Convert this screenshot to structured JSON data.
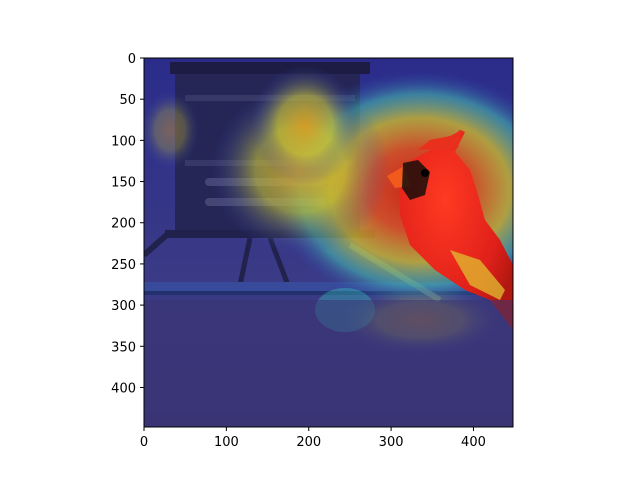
{
  "chart_data": {
    "type": "heatmap",
    "title": "",
    "xlabel": "",
    "ylabel": "",
    "image_size": [
      448,
      448
    ],
    "xlim": [
      0,
      448
    ],
    "ylim": [
      448,
      0
    ],
    "x_ticks": [
      0,
      100,
      200,
      300,
      400
    ],
    "y_ticks": [
      0,
      50,
      100,
      150,
      200,
      250,
      300,
      350,
      400
    ],
    "colormap": "jet",
    "overlay": "saliency heatmap over photo of a red cardinal perched on a bird feeder",
    "hotspots": [
      {
        "x": 320,
        "y": 175,
        "rx": 140,
        "ry": 105,
        "intensity": 1.0
      },
      {
        "x": 250,
        "y": 150,
        "rx": 60,
        "ry": 50,
        "intensity": 0.7
      },
      {
        "x": 195,
        "y": 140,
        "rx": 35,
        "ry": 55,
        "intensity": 0.55
      },
      {
        "x": 340,
        "y": 310,
        "rx": 80,
        "ry": 35,
        "intensity": 0.4
      },
      {
        "x": 30,
        "y": 90,
        "rx": 30,
        "ry": 25,
        "intensity": 0.35
      }
    ]
  }
}
